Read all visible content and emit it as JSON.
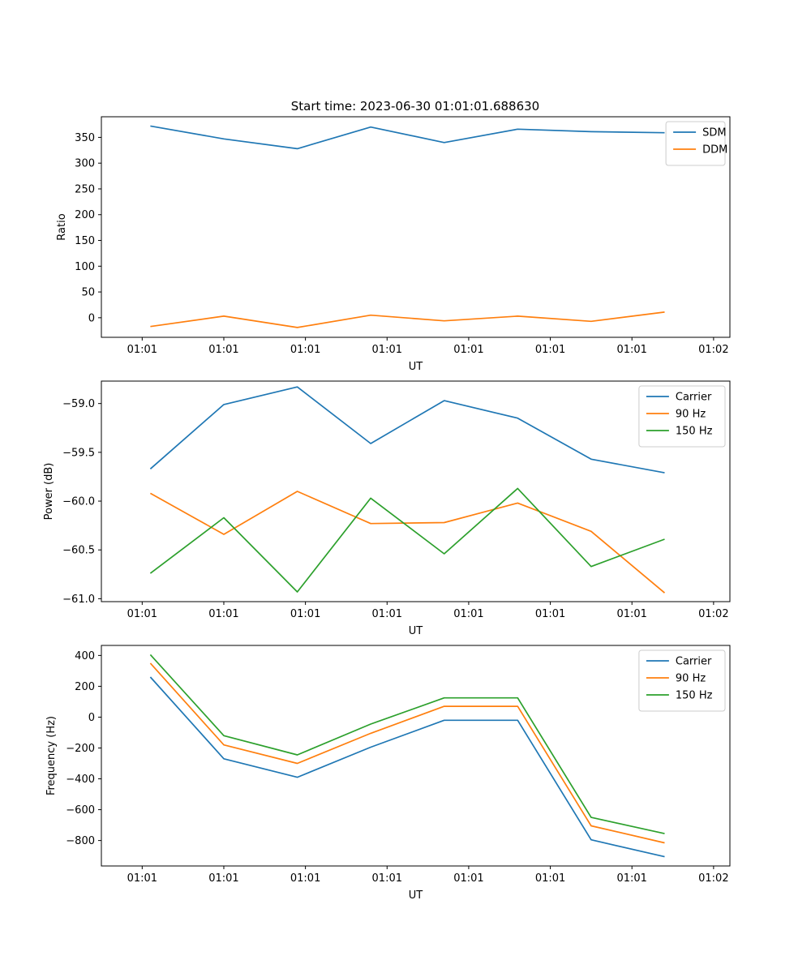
{
  "figure": {
    "title": "Start time: 2023-06-30 01:01:01.688630"
  },
  "chart_data": [
    {
      "type": "line",
      "title": "Start time: 2023-06-30 01:01:01.688630",
      "xlabel": "UT",
      "ylabel": "Ratio",
      "x_tick_labels": [
        "01:01",
        "01:01",
        "01:01",
        "01:01",
        "01:01",
        "01:01",
        "01:01",
        "01:02"
      ],
      "y_ticks": [
        0,
        50,
        100,
        150,
        200,
        250,
        300,
        350
      ],
      "y_tick_labels": [
        "0",
        "50",
        "100",
        "150",
        "200",
        "250",
        "300",
        "350"
      ],
      "xlim": [
        -0.25,
        3.6
      ],
      "ylim": [
        -38,
        390
      ],
      "x": [
        0.05,
        0.5,
        0.95,
        1.4,
        1.85,
        2.3,
        2.75,
        3.2
      ],
      "legend": "top-right",
      "grid": false,
      "series": [
        {
          "name": "SDM",
          "color": "#1f77b4",
          "values": [
            372,
            347,
            328,
            370,
            340,
            366,
            361,
            359
          ]
        },
        {
          "name": "DDM",
          "color": "#ff7f0e",
          "values": [
            -17,
            3,
            -19,
            5,
            -6,
            3,
            -7,
            11
          ]
        }
      ]
    },
    {
      "type": "line",
      "title": "",
      "xlabel": "UT",
      "ylabel": "Power (dB)",
      "x_tick_labels": [
        "01:01",
        "01:01",
        "01:01",
        "01:01",
        "01:01",
        "01:01",
        "01:01",
        "01:02"
      ],
      "y_ticks": [
        -61.0,
        -60.5,
        -60.0,
        -59.5,
        -59.0
      ],
      "y_tick_labels": [
        "−61.0",
        "−60.5",
        "−60.0",
        "−59.5",
        "−59.0"
      ],
      "xlim": [
        -0.25,
        3.6
      ],
      "ylim": [
        -61.03,
        -58.77
      ],
      "x": [
        0.05,
        0.5,
        0.95,
        1.4,
        1.85,
        2.3,
        2.75,
        3.2
      ],
      "legend": "top-right",
      "grid": false,
      "series": [
        {
          "name": "Carrier",
          "color": "#1f77b4",
          "values": [
            -59.67,
            -59.01,
            -58.83,
            -59.41,
            -58.97,
            -59.15,
            -59.57,
            -59.71
          ]
        },
        {
          "name": "90 Hz",
          "color": "#ff7f0e",
          "values": [
            -59.92,
            -60.34,
            -59.9,
            -60.23,
            -60.22,
            -60.02,
            -60.31,
            -60.94
          ]
        },
        {
          "name": "150 Hz",
          "color": "#2ca02c",
          "values": [
            -60.74,
            -60.17,
            -60.93,
            -59.97,
            -60.54,
            -59.87,
            -60.67,
            -60.39
          ]
        }
      ]
    },
    {
      "type": "line",
      "title": "",
      "xlabel": "UT",
      "ylabel": "Frequency (Hz)",
      "x_tick_labels": [
        "01:01",
        "01:01",
        "01:01",
        "01:01",
        "01:01",
        "01:01",
        "01:01",
        "01:02"
      ],
      "y_ticks": [
        -800,
        -600,
        -400,
        -200,
        0,
        200,
        400
      ],
      "y_tick_labels": [
        "−800",
        "−600",
        "−400",
        "−200",
        "0",
        "200",
        "400"
      ],
      "xlim": [
        -0.25,
        3.6
      ],
      "ylim": [
        -965,
        465
      ],
      "x": [
        0.05,
        0.5,
        0.95,
        1.4,
        1.85,
        2.3,
        2.75,
        3.2
      ],
      "legend": "top-right",
      "grid": false,
      "series": [
        {
          "name": "Carrier",
          "color": "#1f77b4",
          "values": [
            260,
            -270,
            -390,
            -195,
            -20,
            -20,
            -795,
            -905
          ]
        },
        {
          "name": "90 Hz",
          "color": "#ff7f0e",
          "values": [
            350,
            -180,
            -300,
            -105,
            70,
            70,
            -705,
            -815
          ]
        },
        {
          "name": "150 Hz",
          "color": "#2ca02c",
          "values": [
            405,
            -120,
            -245,
            -45,
            125,
            125,
            -650,
            -755
          ]
        }
      ]
    }
  ]
}
